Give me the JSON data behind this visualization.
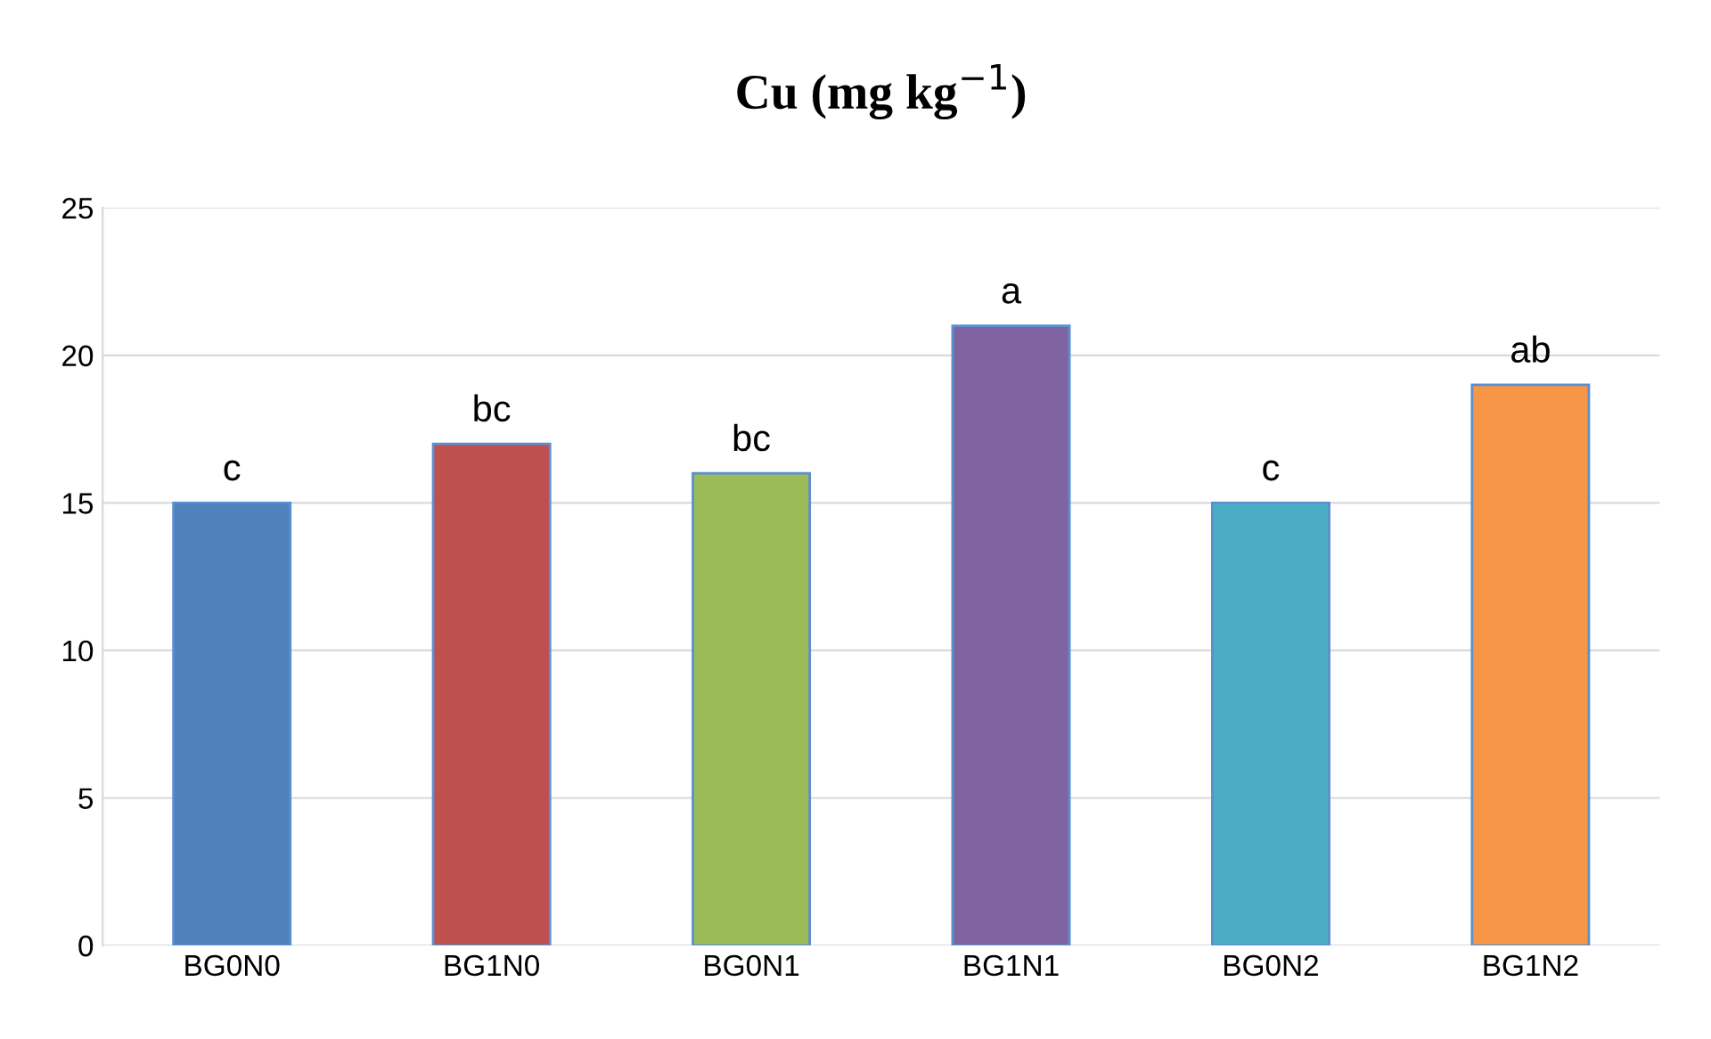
{
  "chart_data": {
    "type": "bar",
    "title": "Cu (mg kg$^{−1}$)",
    "categories": [
      "BG0N0",
      "BG1N0",
      "BG0N1",
      "BG1N1",
      "BG0N2",
      "BG1N2"
    ],
    "values": [
      15,
      17,
      16,
      21,
      15,
      19
    ],
    "colors": [
      "#4f81bd",
      "#c0504d",
      "#9bbb59",
      "#8064a2",
      "#4bacc6",
      "#f79646"
    ],
    "ylim": [
      0,
      25
    ],
    "yticks": [
      0,
      5,
      10,
      15,
      20,
      25
    ],
    "grid": "y",
    "annotations": [
      {
        "text": "c",
        "x": "BG0N0",
        "y": 15
      },
      {
        "text": "bc",
        "x": "BG1N0",
        "y": 17
      },
      {
        "text": "bc",
        "x": "BG0N1",
        "y": 16
      },
      {
        "text": "a",
        "x": "BG1N1",
        "y": 21
      },
      {
        "text": "c",
        "x": "BG0N2",
        "y": 15
      },
      {
        "text": "ab",
        "x": "BG1N2",
        "y": 19
      }
    ]
  }
}
